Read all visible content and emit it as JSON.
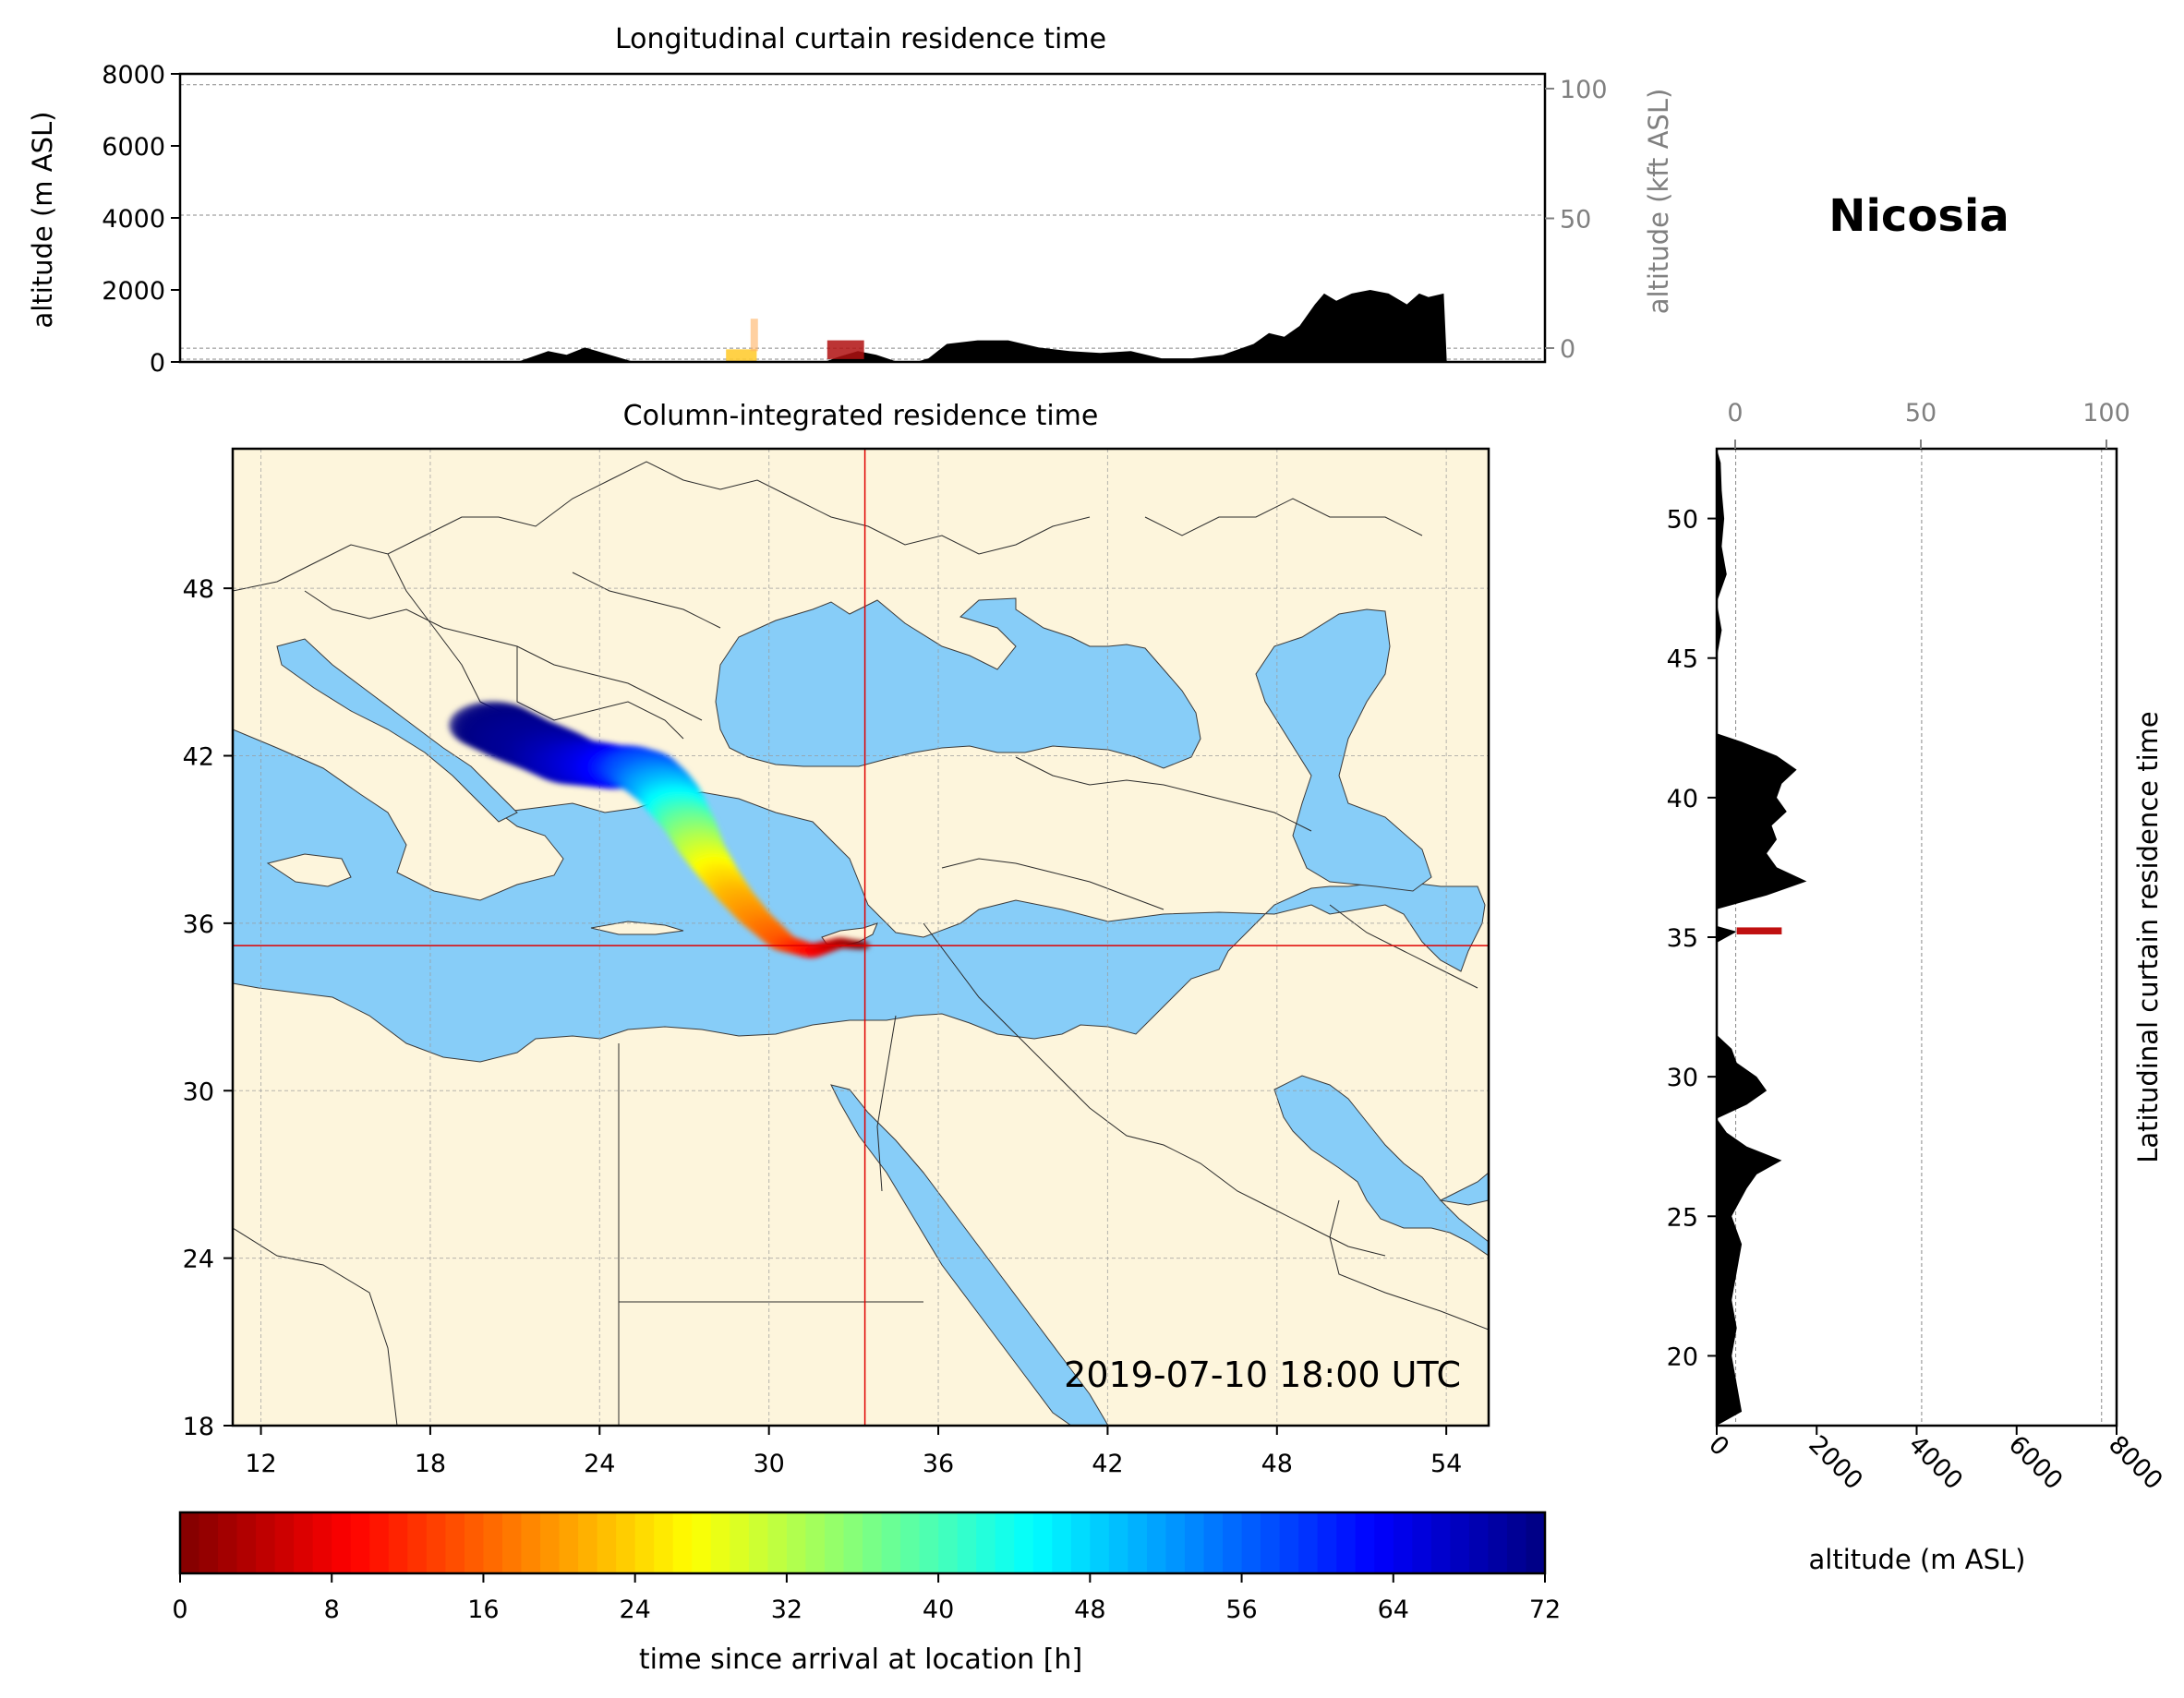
{
  "station": "Nicosia",
  "timestamp": "2019-07-10 18:00 UTC",
  "colors": {
    "land": "#fdf5dc",
    "sea": "#87cdf8",
    "terrain": "#000000",
    "crosshair": "#e00000",
    "secondary_axis": "#808080"
  },
  "top_panel": {
    "title": "Longitudinal curtain residence time",
    "ylabel": "altitude (m ASL)",
    "ylabel_right": "altitude (kft ASL)",
    "yticks": [
      "0",
      "2000",
      "4000",
      "6000",
      "8000"
    ],
    "yticks_right": [
      "0",
      "50",
      "100"
    ]
  },
  "map_panel": {
    "title": "Column-integrated residence time",
    "xticks": [
      "12",
      "18",
      "24",
      "30",
      "36",
      "42",
      "48",
      "54"
    ],
    "yticks": [
      "18",
      "24",
      "30",
      "36",
      "42",
      "48"
    ],
    "crosshair": {
      "lon": 33.4,
      "lat": 35.2
    }
  },
  "right_panel": {
    "ylabel": "Latitudinal curtain residence time",
    "xlabel": "altitude (m ASL)",
    "xticks": [
      "0",
      "2000",
      "4000",
      "6000",
      "8000"
    ],
    "xticks_top": [
      "0",
      "50",
      "100"
    ],
    "yticks": [
      "20",
      "25",
      "30",
      "35",
      "40",
      "45",
      "50"
    ]
  },
  "colorbar": {
    "label": "time since arrival at location [h]",
    "ticks": [
      "0",
      "8",
      "16",
      "24",
      "32",
      "40",
      "48",
      "56",
      "64",
      "72"
    ],
    "colormap": "jet_r"
  },
  "chart_data": [
    {
      "type": "area",
      "title": "Longitudinal curtain residence time",
      "xlabel": "",
      "ylabel": "altitude (m ASL)",
      "xlim": [
        11,
        55.5
      ],
      "ylim": [
        0,
        8000
      ],
      "grid": true,
      "series": [
        {
          "name": "",
          "x": [
            11,
            22,
            23,
            23.6,
            24.2,
            24.6,
            25.2,
            25.8,
            26.2,
            32,
            32.5,
            33.1,
            33.7,
            34.4,
            35,
            35.4,
            36,
            37,
            38,
            39,
            40,
            41,
            42,
            43,
            44,
            45,
            46,
            46.5,
            47,
            47.5,
            48,
            48.3,
            48.7,
            49.2,
            49.8,
            50.4,
            51,
            51.4,
            51.7,
            52.2,
            52.3,
            55.5
          ],
          "y": [
            0,
            0,
            300,
            200,
            400,
            300,
            150,
            0,
            0,
            0,
            150,
            300,
            200,
            0,
            0,
            100,
            500,
            600,
            600,
            400,
            300,
            250,
            300,
            100,
            100,
            200,
            500,
            800,
            700,
            1000,
            1600,
            1900,
            1700,
            1900,
            2000,
            1900,
            1600,
            1900,
            1800,
            1900,
            0,
            0
          ]
        }
      ]
    },
    {
      "type": "area",
      "title": "Latitudinal curtain residence time",
      "xlabel": "altitude (m ASL)",
      "ylabel": "Latitudinal curtain residence time",
      "xlim": [
        0,
        8000
      ],
      "ylim": [
        17.5,
        52.5
      ],
      "grid": true,
      "series": [
        {
          "name": "",
          "lat": [
            17.5,
            18,
            19,
            20,
            21,
            22,
            23,
            24,
            25,
            26,
            26.5,
            27,
            27.5,
            28,
            28.5,
            29,
            29.5,
            30,
            30.5,
            31,
            31.5,
            34.8,
            35,
            35.2,
            35.4,
            36,
            36.5,
            37,
            37.5,
            38,
            38.5,
            39,
            39.5,
            40,
            40.5,
            41,
            41.5,
            42,
            42.3,
            45,
            46,
            47,
            48,
            49,
            50,
            51,
            52,
            52.5
          ],
          "alt": [
            0,
            500,
            400,
            300,
            400,
            300,
            400,
            500,
            300,
            600,
            800,
            1300,
            600,
            200,
            0,
            600,
            1000,
            800,
            400,
            300,
            0,
            0,
            200,
            400,
            0,
            0,
            1000,
            1800,
            1200,
            1000,
            1200,
            1100,
            1400,
            1200,
            1300,
            1600,
            1200,
            500,
            0,
            0,
            100,
            0,
            200,
            100,
            150,
            100,
            80,
            0
          ]
        }
      ]
    },
    {
      "type": "scatter",
      "title": "Column-integrated residence time",
      "xlabel": "",
      "ylabel": "",
      "xlim": [
        11,
        55.5
      ],
      "ylim": [
        18,
        53
      ],
      "grid": true,
      "series": [
        {
          "name": "",
          "lon": [
            33.4,
            32.5,
            31.5,
            30.5,
            29.5,
            28.8,
            28.2,
            27.6,
            27.2,
            26.8,
            26.4,
            26.0,
            25.5,
            25.0,
            24.5,
            23.8,
            23.0,
            22.2,
            21.2,
            20.2
          ],
          "lat": [
            35.2,
            35.3,
            35.0,
            35.3,
            36.2,
            37.0,
            37.8,
            38.7,
            39.5,
            40.1,
            40.7,
            41.1,
            41.5,
            41.6,
            41.6,
            41.7,
            41.8,
            42.2,
            42.6,
            43.1
          ],
          "hours": [
            0,
            4,
            10,
            15,
            19,
            22,
            26,
            32,
            38,
            44,
            50,
            54,
            58,
            62,
            64,
            66,
            68,
            70,
            71,
            72
          ]
        }
      ]
    }
  ]
}
